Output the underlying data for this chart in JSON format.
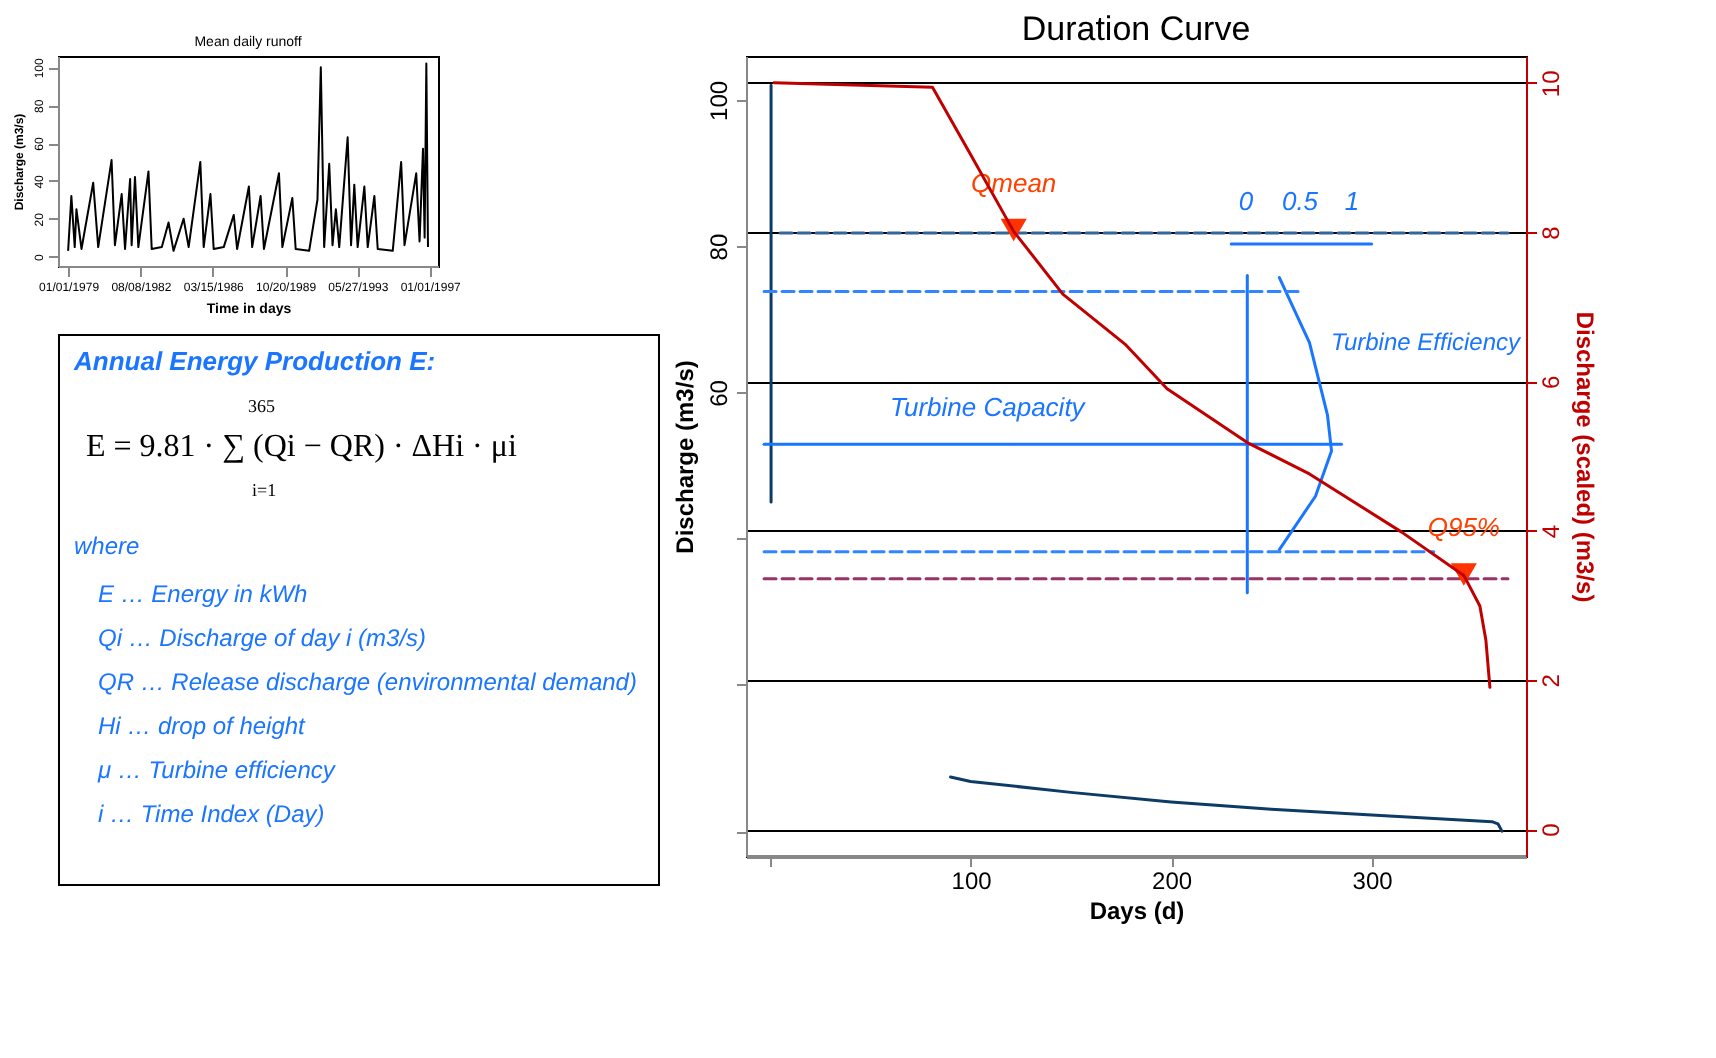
{
  "chart_data": [
    {
      "type": "line",
      "title": "Mean daily runoff",
      "xlabel": "Time in days",
      "ylabel": "Discharge (m3/s)",
      "x": [
        "1979-01",
        "1979-03",
        "1979-05",
        "1979-06",
        "1979-09",
        "1980-04",
        "1980-07",
        "1981-03",
        "1981-05",
        "1981-09",
        "1981-11",
        "1982-02",
        "1982-03",
        "1982-05",
        "1982-07",
        "1983-01",
        "1983-03",
        "1983-09",
        "1984-01",
        "1984-04",
        "1984-10",
        "1985-01",
        "1985-08",
        "1985-10",
        "1986-02",
        "1986-04",
        "1986-10",
        "1987-04",
        "1987-06",
        "1988-01",
        "1988-03",
        "1988-08",
        "1988-10",
        "1989-07",
        "1989-09",
        "1990-03",
        "1990-05",
        "1991-01",
        "1991-06",
        "1991-08",
        "1991-10",
        "1992-01",
        "1992-03",
        "1992-05",
        "1992-07",
        "1992-12",
        "1993-02",
        "1993-04",
        "1993-06",
        "1993-10",
        "1993-12",
        "1994-04",
        "1994-06",
        "1995-03",
        "1995-08",
        "1995-10",
        "1996-05",
        "1996-07",
        "1996-09",
        "1996-10",
        "1996-11",
        "1996-12"
      ],
      "series": [
        {
          "color": "#000000",
          "values": [
            3,
            32,
            5,
            25,
            4,
            39,
            5,
            51,
            6,
            33,
            4,
            41,
            6,
            42,
            5,
            45,
            4,
            5,
            18,
            3,
            20,
            5,
            50,
            5,
            33,
            4,
            5,
            22,
            4,
            37,
            5,
            32,
            4,
            44,
            5,
            31,
            4,
            3,
            30,
            100,
            5,
            49,
            6,
            25,
            5,
            63,
            6,
            38,
            5,
            37,
            5,
            32,
            4,
            3,
            50,
            6,
            44,
            8,
            57,
            10,
            102,
            5
          ]
        }
      ],
      "xlim": [
        "1978-07-01",
        "1997-06-01"
      ],
      "xticks": [
        {
          "value": "1979-01-01",
          "label": "01/01/1979"
        },
        {
          "value": "1982-08-08",
          "label": "08/08/1982"
        },
        {
          "value": "1986-03-15",
          "label": "03/15/1986"
        },
        {
          "value": "1989-10-20",
          "label": "10/20/1989"
        },
        {
          "value": "1993-05-27",
          "label": "05/27/1993"
        },
        {
          "value": "1997-01-01",
          "label": "01/01/1997"
        }
      ],
      "ylim": [
        -5,
        106
      ],
      "yticks": [
        0,
        20,
        40,
        60,
        80,
        100
      ],
      "grid": false
    },
    {
      "type": "other",
      "title": "Annual Energy Production E:",
      "annotations": [
        "365",
        "E = 9.81 · ∑ (Qi − QR) · ΔHi · μi",
        "i=1",
        "where",
        "E … Energy in kWh",
        "Qi … Discharge of day i (m3/s)",
        "QR … Release discharge (environmental demand)",
        "Hi … drop of height",
        "μ … Turbine efficiency",
        "i … Time Index (Day)"
      ]
    },
    {
      "type": "line",
      "title": "Duration Curve",
      "xlabel": "Days (d)",
      "ylabel": "Discharge (m3/s)",
      "y2label": "Discharge (scaled) (m3/s)",
      "series": [
        {
          "color": "#0d3b66",
          "x": [
            0.5,
            0.5,
            1,
            90,
            100,
            150,
            200,
            250,
            300,
            340,
            360,
            363,
            365
          ],
          "values": [
            102,
            45,
            null,
            7.4,
            6.8,
            5.3,
            4.0,
            3.0,
            2.2,
            1.6,
            1.3,
            1.0,
            0
          ]
        },
        {
          "color": "#c00000",
          "axis": "y2",
          "x": [
            2,
            81,
            100,
            121.5,
            146,
            177,
            198,
            238,
            269,
            315,
            346,
            354,
            357,
            359
          ],
          "values": [
            10,
            9.94,
            9.04,
            8.01,
            7.17,
            6.5,
            5.9,
            5.18,
            4.76,
            3.98,
            3.4,
            2.99,
            2.53,
            1.9
          ]
        },
        {
          "color": "#1a75ff",
          "x": [
            254,
            269,
            278,
            280,
            272,
            254
          ],
          "values": [
            75.7,
            66.8,
            56.9,
            52,
            45.8,
            38.5
          ]
        },
        {
          "color": "#3385ff",
          "line_style": "dashed",
          "x": [
            -3,
            265
          ],
          "values": [
            73.8,
            73.8
          ]
        },
        {
          "color": "#3385ff",
          "line_style": "dashed",
          "x": [
            -3,
            331
          ],
          "values": [
            38.2,
            38.2
          ]
        },
        {
          "color": "#1a75ff",
          "x": [
            -3,
            285
          ],
          "values": [
            52.9,
            52.9
          ]
        },
        {
          "color": "#336699",
          "line_style": "dashed",
          "x": [
            5,
            368
          ],
          "values": [
            81.8,
            81.8
          ]
        },
        {
          "color": "#993366",
          "line_style": "dashed",
          "x": [
            -3,
            368
          ],
          "values": [
            34.5,
            34.5
          ]
        },
        {
          "color": "#1a75ff",
          "x": [
            238,
            238
          ],
          "values": [
            76,
            32.6
          ]
        },
        {
          "color": "#1a75ff",
          "x": [
            230,
            300
          ],
          "values": [
            80.3,
            80.3
          ]
        },
        {
          "type": "scatter",
          "marker": "triangle",
          "color": "#ff3300",
          "x": [
            121.5,
            346
          ],
          "values": [
            82.2,
            35.1
          ]
        }
      ],
      "annotations": [
        {
          "text": "Qmean",
          "x": 121.5,
          "y": 82.2
        },
        {
          "text": "Q95%",
          "x": 346,
          "y": 35.1
        },
        "Turbine Capacity",
        "Turbine Efficiency",
        "0",
        "0.5",
        "1"
      ],
      "xlim": [
        -12,
        377
      ],
      "xticks": [
        {
          "value": 0,
          "label": null
        },
        100,
        200,
        300
      ],
      "ylim": [
        -3.4,
        106
      ],
      "yticks": [
        {
          "value": 0,
          "label": null
        },
        {
          "value": 20,
          "label": null
        },
        {
          "value": 40,
          "label": null
        },
        60,
        80,
        100
      ],
      "y2lim": [
        -0.36,
        10.36
      ],
      "y2ticks": [
        0,
        2,
        4,
        6,
        8,
        10
      ],
      "grid": "y"
    }
  ]
}
